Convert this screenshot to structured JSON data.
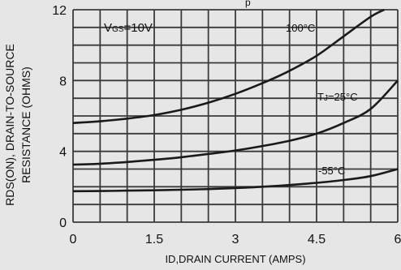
{
  "chart_data": {
    "type": "line",
    "top_title_fragment": "p",
    "xlabel": "ID,DRAIN CURRENT (AMPS)",
    "ylabel_line1": "RDS(ON), DRAIN-TO-SOURCE",
    "ylabel_line2": "RESISTANCE (OHMS)",
    "xlim": [
      0,
      6
    ],
    "ylim": [
      0,
      12
    ],
    "x_ticks": [
      "0",
      "1.5",
      "3",
      "4.5",
      "6"
    ],
    "y_ticks": [
      "0",
      "4",
      "8",
      "12"
    ],
    "grid": true,
    "annotations": {
      "vgs": "VGS=10V",
      "t100": "100°C",
      "t25": "TJ=25°C",
      "tm55": "-55°C"
    },
    "series": [
      {
        "name": "100°C",
        "x": [
          0,
          0.5,
          1,
          1.5,
          2,
          2.5,
          3,
          3.5,
          4,
          4.5,
          5,
          5.5,
          5.75
        ],
        "y": [
          5.6,
          5.7,
          5.85,
          6.05,
          6.35,
          6.75,
          7.25,
          7.85,
          8.55,
          9.4,
          10.5,
          11.6,
          12.0
        ]
      },
      {
        "name": "TJ=25°C",
        "x": [
          0,
          0.5,
          1,
          1.5,
          2,
          2.5,
          3,
          3.5,
          4,
          4.5,
          5,
          5.5,
          6
        ],
        "y": [
          3.25,
          3.3,
          3.4,
          3.52,
          3.67,
          3.85,
          4.05,
          4.3,
          4.6,
          5.0,
          5.6,
          6.4,
          8.0
        ]
      },
      {
        "name": "-55°C",
        "x": [
          0,
          0.5,
          1,
          1.5,
          2,
          2.5,
          3,
          3.5,
          4,
          4.5,
          5,
          5.5,
          6
        ],
        "y": [
          1.75,
          1.76,
          1.78,
          1.8,
          1.83,
          1.87,
          1.93,
          2.0,
          2.1,
          2.22,
          2.38,
          2.6,
          3.0
        ]
      }
    ]
  }
}
